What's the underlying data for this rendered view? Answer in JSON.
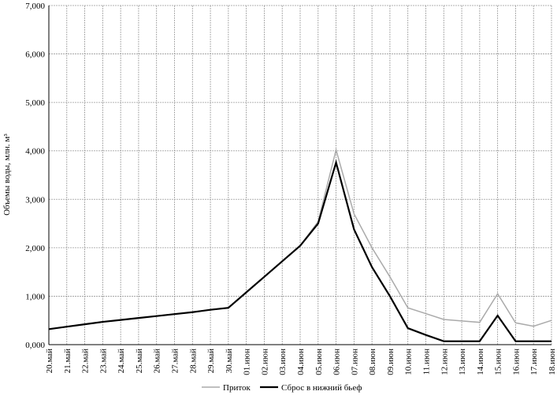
{
  "chart_data": {
    "type": "line",
    "y_label": "Объемы воды, млн. м³",
    "categories": [
      "20.май",
      "21.май",
      "22.май",
      "23.май",
      "24.май",
      "25.май",
      "26.май",
      "27.май",
      "28.май",
      "29.май",
      "30.май",
      "01.июн",
      "02.июн",
      "03.июн",
      "04.июн",
      "05.июн",
      "06.июн",
      "07.июн",
      "08.июн",
      "09.июн",
      "10.июн",
      "11.июн",
      "12.июн",
      "13.июн",
      "14.июн",
      "15.июн",
      "16.июн",
      "17.июн",
      "18.июн"
    ],
    "series": [
      {
        "name": "Приток",
        "color": "#aaaaaa",
        "values": [
          320,
          370,
          420,
          470,
          510,
          550,
          590,
          630,
          670,
          720,
          760,
          1080,
          1400,
          1720,
          2040,
          2540,
          4020,
          2700,
          2000,
          1400,
          760,
          640,
          520,
          490,
          460,
          1050,
          450,
          380,
          500
        ]
      },
      {
        "name": "Сброс в нижний бьеф",
        "color": "#000000",
        "values": [
          320,
          370,
          420,
          470,
          510,
          550,
          590,
          630,
          670,
          720,
          760,
          1080,
          1400,
          1720,
          2040,
          2500,
          3760,
          2380,
          1600,
          1000,
          340,
          200,
          70,
          70,
          70,
          600,
          70,
          70,
          70
        ]
      }
    ],
    "ylim": [
      0,
      7000
    ],
    "yticks": [
      {
        "value": 0,
        "label": "0,000"
      },
      {
        "value": 1000,
        "label": "1,000"
      },
      {
        "value": 2000,
        "label": "2,000"
      },
      {
        "value": 3000,
        "label": "3,000"
      },
      {
        "value": 4000,
        "label": "4,000"
      },
      {
        "value": 5000,
        "label": "5,000"
      },
      {
        "value": 6000,
        "label": "6,000"
      },
      {
        "value": 7000,
        "label": "7,000"
      }
    ],
    "grid": true
  }
}
